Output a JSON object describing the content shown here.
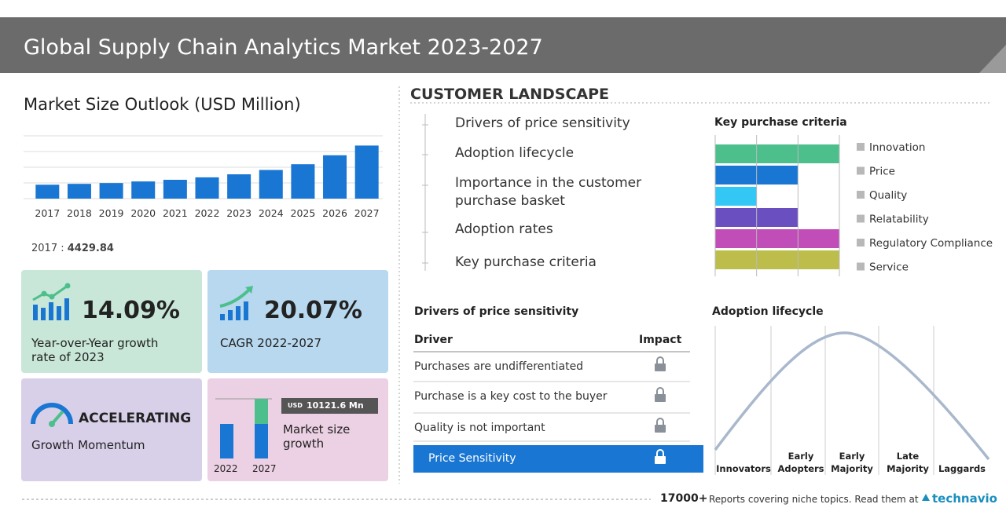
{
  "header": {
    "title": "Global Supply Chain Analytics Market 2023-2027"
  },
  "market_size": {
    "title": "Market Size Outlook (USD Million)"
  },
  "chart_data": [
    {
      "type": "bar",
      "categories": [
        "2017",
        "2018",
        "2019",
        "2020",
        "2021",
        "2022",
        "2023",
        "2024",
        "2025",
        "2026",
        "2027"
      ],
      "values": [
        4429.84,
        4700,
        4960,
        5470,
        6000,
        6780,
        7740,
        9130,
        10950,
        13810,
        16900
      ],
      "color": "#1976d2",
      "ylim": [
        0,
        20000
      ],
      "yticks": [
        0,
        5000,
        10000,
        15000,
        20000
      ],
      "grid": true
    },
    {
      "type": "barh",
      "title": "Key purchase criteria",
      "categories": [
        "Innovation",
        "Price",
        "Quality",
        "Relatability",
        "Regulatory Compliance",
        "Service"
      ],
      "values": [
        3,
        2,
        1,
        2,
        3,
        3
      ],
      "colors": [
        "#4cbf8c",
        "#1976d2",
        "#33c7f5",
        "#6a4fc0",
        "#c04db8",
        "#bdbd4b"
      ],
      "xlim": [
        0,
        3
      ],
      "xticks": [
        0,
        1,
        2,
        3
      ],
      "grid": true
    }
  ],
  "kpis": [
    {
      "value": "14.09%",
      "label": "Year-over-Year growth rate of 2023"
    },
    {
      "value": "20.07%",
      "label": "CAGR 2022-2027"
    },
    {
      "value": "ACCELERATING",
      "label": "Growth Momentum"
    },
    {
      "badge_unit": "USD",
      "badge_value": "10121.6 Mn",
      "label": "Market size growth",
      "years": [
        "2022",
        "2027"
      ]
    }
  ],
  "customer_landscape": {
    "title": "CUSTOMER LANDSCAPE",
    "items": [
      "Drivers of price sensitivity",
      "Adoption lifecycle",
      "Importance in the customer purchase basket",
      "Adoption rates",
      "Key purchase criteria"
    ]
  },
  "drivers": {
    "title": "Drivers of price sensitivity",
    "header": [
      "Driver",
      "Impact"
    ],
    "rows": [
      "Purchases are undifferentiated",
      "Purchase is a key cost to the buyer",
      "Quality is not important",
      "Price Sensitivity"
    ]
  },
  "adoption": {
    "title": "Adoption lifecycle",
    "stages": [
      "Innovators",
      "Early Adopters",
      "Early Majority",
      "Late Majority",
      "Laggards"
    ]
  },
  "footer": {
    "count": "17000+",
    "text": "Reports covering niche topics. Read them at",
    "brand": "technavio"
  }
}
